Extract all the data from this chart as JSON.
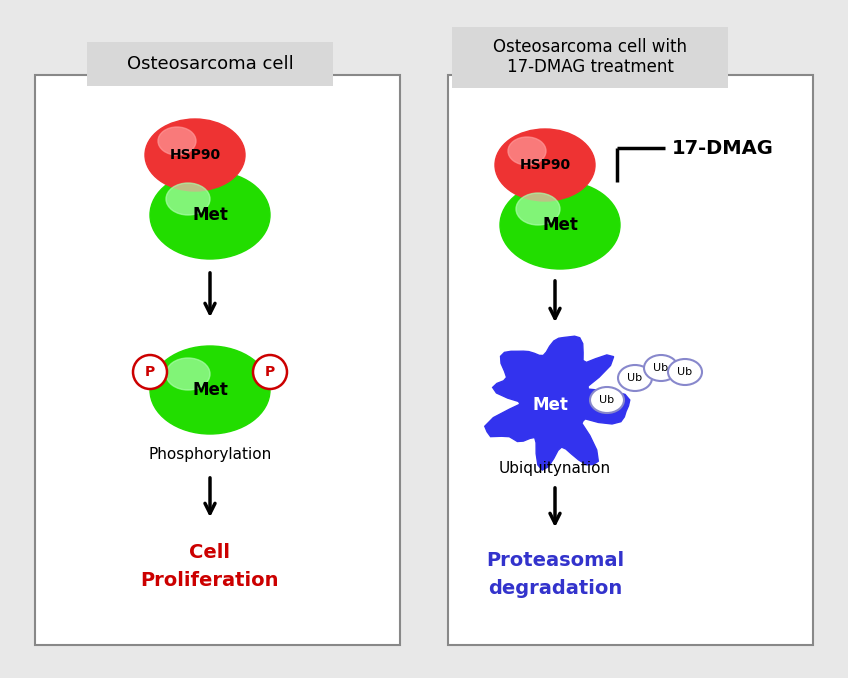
{
  "bg_color": "#e8e8e8",
  "panel_bg": "#ffffff",
  "left_title": "Osteosarcoma cell",
  "right_title": "Osteosarcoma cell with\n17-DMAG treatment",
  "hsp90_color": "#ee3333",
  "hsp90_highlight": "#ff9999",
  "met_green_color": "#22dd00",
  "met_green_highlight": "#aaffaa",
  "met_blue_color": "#3333ee",
  "p_edge_color": "#cc0000",
  "p_text_color": "#cc0000",
  "ub_edge_color": "#8888cc",
  "ub_text_color": "#000000",
  "dmag_text": "17-DMAG",
  "cell_proliferation_color": "#cc0000",
  "proteasomal_color": "#3333cc",
  "arrow_color": "#000000",
  "panel_edge_color": "#888888"
}
